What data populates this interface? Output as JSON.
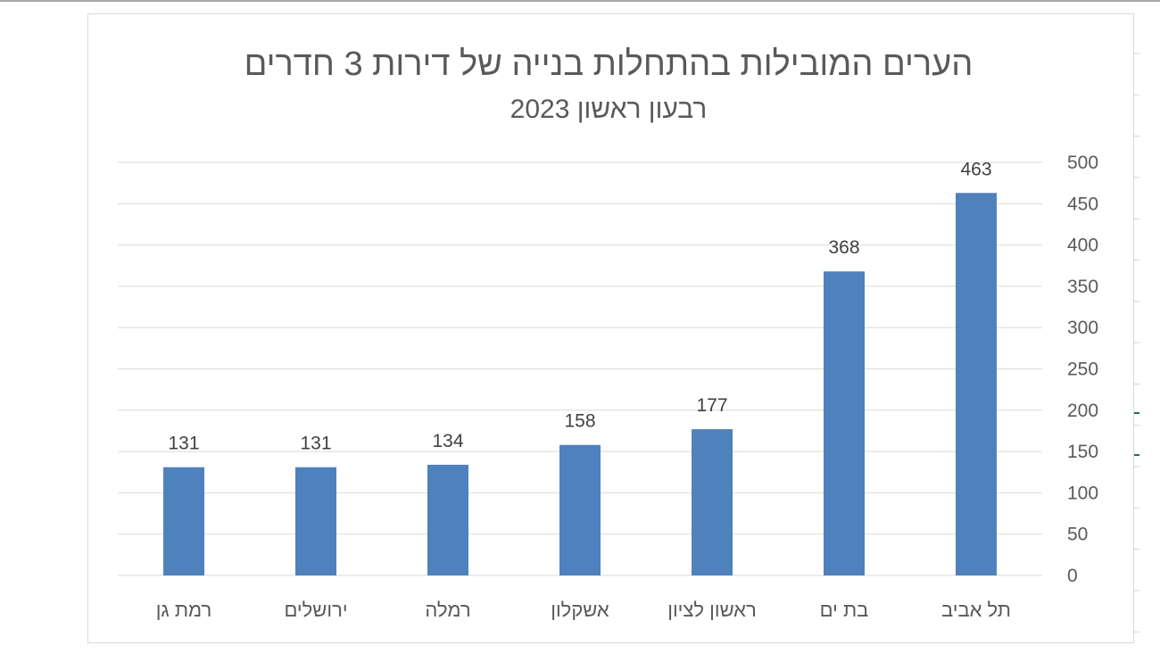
{
  "chart_data": {
    "type": "bar",
    "title": "הערים המובילות בהתחלות בנייה של דירות 3 חדרים",
    "subtitle": "רבעון ראשון 2023",
    "categories": [
      "תל אביב",
      "בת ים",
      "ראשון לציון",
      "אשקלון",
      "רמלה",
      "ירושלים",
      "רמת גן"
    ],
    "values": [
      463,
      368,
      177,
      158,
      134,
      131,
      131
    ],
    "ylim": [
      0,
      500
    ],
    "yticks": [
      0,
      50,
      100,
      150,
      200,
      250,
      300,
      350,
      400,
      450,
      500
    ],
    "xlabel": "",
    "ylabel": "",
    "grid": true,
    "axis_position": "right",
    "category_order": "right-to-left",
    "bar_color": "#4f81bd",
    "data_labels": true
  }
}
